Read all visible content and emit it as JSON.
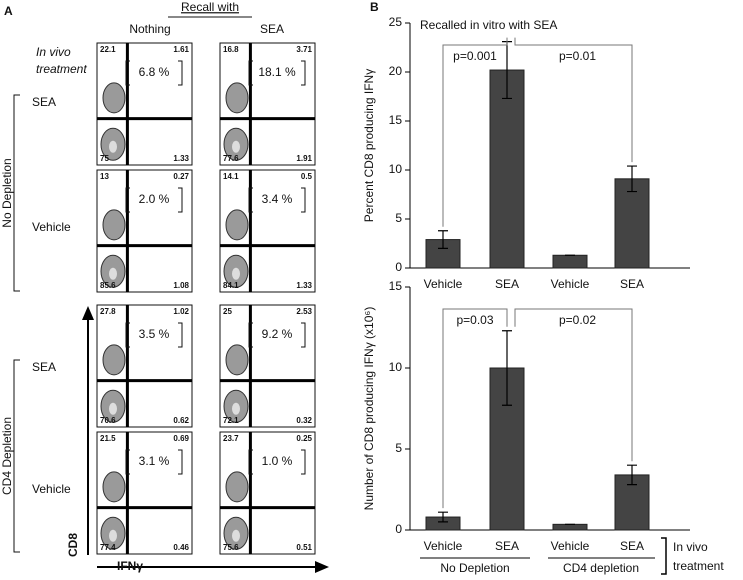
{
  "panel_a": {
    "letter": "A",
    "recall_title": "Recall with",
    "columns": [
      "Nothing",
      "SEA"
    ],
    "in_vivo": [
      "In vivo",
      "treatment"
    ],
    "depletion_groups": [
      "No Depletion",
      "CD4 Depletion"
    ],
    "rows": [
      {
        "label": "SEA",
        "plots": [
          {
            "tl": "22.1",
            "tr": "1.61",
            "bl": "75",
            "br": "1.33",
            "pct": "6.8 %"
          },
          {
            "tl": "16.8",
            "tr": "3.71",
            "bl": "77.6",
            "br": "1.91",
            "pct": "18.1 %"
          }
        ]
      },
      {
        "label": "Vehicle",
        "plots": [
          {
            "tl": "13",
            "tr": "0.27",
            "bl": "85.6",
            "br": "1.08",
            "pct": "2.0 %"
          },
          {
            "tl": "14.1",
            "tr": "0.5",
            "bl": "84.1",
            "br": "1.33",
            "pct": "3.4 %"
          }
        ]
      },
      {
        "label": "SEA",
        "plots": [
          {
            "tl": "27.8",
            "tr": "1.02",
            "bl": "70.6",
            "br": "0.62",
            "pct": "3.5 %"
          },
          {
            "tl": "25",
            "tr": "2.53",
            "bl": "72.1",
            "br": "0.32",
            "pct": "9.2 %"
          }
        ]
      },
      {
        "label": "Vehicle",
        "plots": [
          {
            "tl": "21.5",
            "tr": "0.69",
            "bl": "77.4",
            "br": "0.46",
            "pct": "3.1 %"
          },
          {
            "tl": "23.7",
            "tr": "0.25",
            "bl": "75.6",
            "br": "0.51",
            "pct": "1.0 %"
          }
        ]
      }
    ],
    "y_axis": "CD8",
    "x_axis": "IFNγ"
  },
  "chart_data": [
    {
      "type": "bar",
      "panel": "B",
      "title": "Recalled in vitro with SEA",
      "ylabel": "Percent CD8 producing IFNγ",
      "categories": [
        "Vehicle",
        "SEA",
        "Vehicle",
        "SEA"
      ],
      "values": [
        2.9,
        20.2,
        1.3,
        9.1
      ],
      "errors": [
        0.9,
        2.9,
        0,
        1.3
      ],
      "color": "#444444",
      "ylim": [
        0,
        25
      ],
      "yticks": [
        0,
        5,
        10,
        15,
        20,
        25
      ],
      "annotations": [
        "p=0.001",
        "p=0.01"
      ]
    },
    {
      "type": "bar",
      "ylabel": "Number of CD8 producing IFNγ (x10⁶)",
      "categories": [
        "Vehicle",
        "SEA",
        "Vehicle",
        "SEA"
      ],
      "values": [
        0.8,
        10.0,
        0.35,
        3.4
      ],
      "errors": [
        0.3,
        2.3,
        0,
        0.6
      ],
      "color": "#444444",
      "ylim": [
        0,
        15
      ],
      "yticks": [
        0,
        5,
        10,
        15
      ],
      "annotations": [
        "p=0.03",
        "p=0.02"
      ],
      "groups": [
        "No Depletion",
        "CD4 depletion"
      ],
      "group_title": [
        "In vivo",
        "treatment"
      ]
    }
  ]
}
